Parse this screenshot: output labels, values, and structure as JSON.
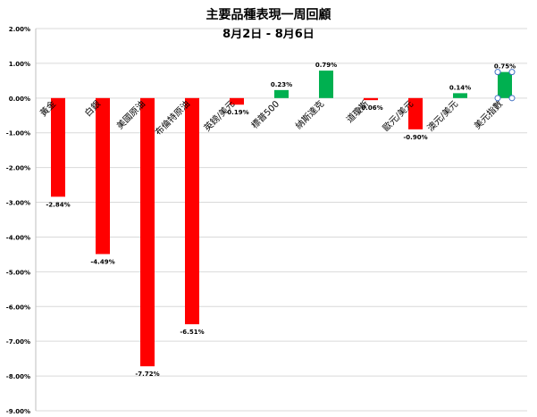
{
  "chart_data": {
    "type": "bar",
    "title": "主要品種表現一周回顧",
    "subtitle": "8月2日 - 8月6日",
    "xlabel": "",
    "ylabel": "",
    "ylim": [
      -0.09,
      0.02
    ],
    "ytick_step": 0.01,
    "grid": true,
    "legend": "none",
    "categories": [
      "黃金",
      "白銀",
      "美國原油",
      "布倫特原油",
      "英鎊/美元",
      "標普500",
      "納斯達克",
      "道瓊斯",
      "歐元/美元",
      "澳元/美元",
      "美元指數"
    ],
    "values": [
      -0.0284,
      -0.0449,
      -0.0772,
      -0.0651,
      -0.0019,
      0.0023,
      0.0079,
      -0.0006,
      -0.009,
      0.0014,
      0.0075
    ],
    "data_labels": [
      "-2.84%",
      "-4.49%",
      "-7.72%",
      "-6.51%",
      "-0.19%",
      "0.23%",
      "0.79%",
      "-0.06%",
      "-0.90%",
      "0.14%",
      "0.75%"
    ],
    "ytick_labels": [
      "2.00%",
      "1.00%",
      "0.00%",
      "-1.00%",
      "-2.00%",
      "-3.00%",
      "-4.00%",
      "-5.00%",
      "-6.00%",
      "-7.00%",
      "-8.00%",
      "-9.00%"
    ],
    "colors": {
      "negative": "#ff0000",
      "positive": "#00b050",
      "grid": "#d9d9d9",
      "axis": "#bfbfbf",
      "selection": "#4472c4"
    },
    "selected_index": 10
  }
}
